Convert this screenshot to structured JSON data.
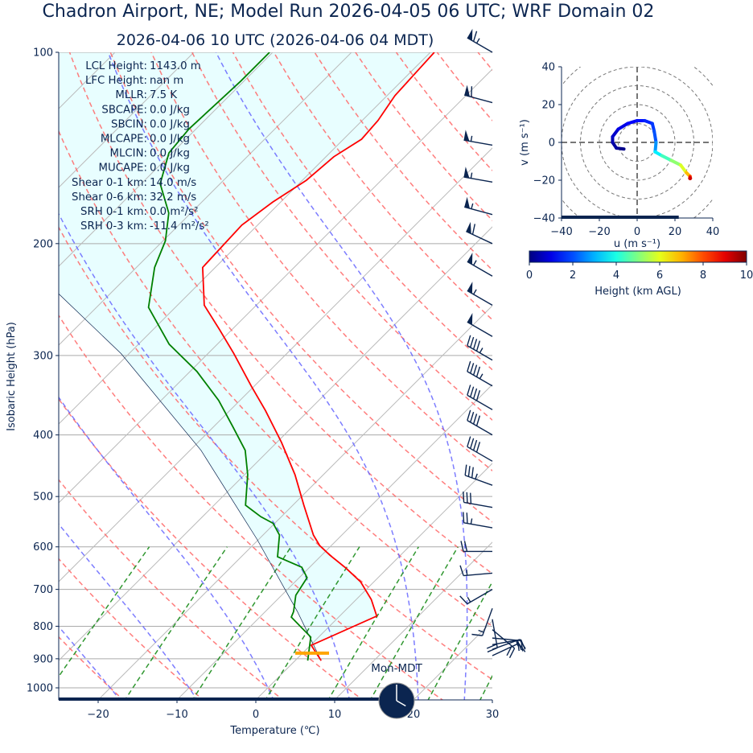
{
  "header": {
    "title": "Chadron Airport, NE; Model Run 2026-04-05 06 UTC; WRF Domain 02",
    "subtitle": "2026-04-06 10 UTC  (2026-04-06 04 MDT)"
  },
  "stats": [
    {
      "label": "LCL Height:",
      "value": "1143.0 m"
    },
    {
      "label": "LFC Height:",
      "value": "nan m"
    },
    {
      "label": "MLLR:",
      "value": "7.5 K"
    },
    {
      "label": "SBCAPE:",
      "value": "0.0 J/kg"
    },
    {
      "label": "SBCIN:",
      "value": "0.0 J/kg"
    },
    {
      "label": "MLCAPE:",
      "value": "0.0 J/kg"
    },
    {
      "label": "MLCIN:",
      "value": "0.0 J/kg"
    },
    {
      "label": "MUCAPE:",
      "value": "0.0 J/kg"
    },
    {
      "label": "Shear 0-1 km:",
      "value": "14.0 m/s"
    },
    {
      "label": "Shear 0-6 km:",
      "value": "32.2 m/s"
    },
    {
      "label": "SRH 0-1 km:",
      "value": "0.0 m²/s²"
    },
    {
      "label": "SRH 0-3 km:",
      "value": "-11.4 m²/s²"
    }
  ],
  "clock": {
    "label": "Mon-MDT",
    "hour": 4,
    "minute": 0,
    "color": "#0b2550"
  },
  "chart_data": [
    {
      "type": "line",
      "kind": "skew-t log-p",
      "xlabel": "Temperature (℃)",
      "ylabel": "Isobaric Height (hPa)",
      "xlim": [
        -25,
        30
      ],
      "ylim": [
        1044,
        100
      ],
      "y_scale": "log",
      "xticks": [
        -20,
        -10,
        0,
        10,
        20,
        30
      ],
      "xtick_labels": [
        "−20",
        "−10",
        "0",
        "10",
        "20",
        "30"
      ],
      "yticks": [
        100,
        200,
        300,
        400,
        500,
        600,
        700,
        800,
        900,
        1000
      ],
      "ytick_labels": [
        "100",
        "200",
        "300",
        "400",
        "500",
        "600",
        "700",
        "800",
        "900",
        "1000"
      ],
      "grid": true,
      "colors": {
        "temperature": "#ff0000",
        "dewpoint": "#008000",
        "parcel": "#0b2550",
        "dry_adiabats": "#ff6666",
        "moist_adiabats": "#6666ff",
        "mixing_ratio": "#1a8c1a",
        "cin_fill": "#e8feff",
        "lcl": "#ffa500",
        "barbs": "#0b2550"
      },
      "dry_adiabat_theta_c": [
        -30,
        -20,
        -10,
        0,
        10,
        20,
        30,
        40,
        50,
        60,
        70,
        80,
        90,
        100,
        110,
        120,
        130,
        140,
        150,
        160,
        170,
        180,
        190,
        200
      ],
      "moist_adiabat_t0_c": [
        -20,
        -10,
        0,
        10,
        19,
        25
      ],
      "mixing_ratio_gkg": [
        0.4,
        1,
        2,
        4,
        7,
        10,
        16,
        24,
        32
      ],
      "lcl_pressure_hpa": 882,
      "series": [
        {
          "id": "temperature",
          "points": [
            [
              906,
              3.3
            ],
            [
              857,
              0.1
            ],
            [
              771,
              4.7
            ],
            [
              726,
              1.9
            ],
            [
              681,
              -1.7
            ],
            [
              648,
              -5.3
            ],
            [
              618,
              -9.0
            ],
            [
              597,
              -11.5
            ],
            [
              575,
              -13.6
            ],
            [
              516,
              -18.6
            ],
            [
              462,
              -23.6
            ],
            [
              411,
              -29.4
            ],
            [
              366,
              -35.5
            ],
            [
              335,
              -40.4
            ],
            [
              298,
              -46.7
            ],
            [
              273,
              -51.6
            ],
            [
              250,
              -56.6
            ],
            [
              218,
              -61.6
            ],
            [
              187,
              -62.0
            ],
            [
              172,
              -61.0
            ],
            [
              159,
              -59.5
            ],
            [
              146,
              -59.0
            ],
            [
              137,
              -57.7
            ],
            [
              128,
              -58.0
            ],
            [
              117,
              -59.0
            ],
            [
              100,
              -59.5
            ]
          ]
        },
        {
          "id": "dewpoint",
          "points": [
            [
              906,
              1.6
            ],
            [
              832,
              -1.0
            ],
            [
              774,
              -6.0
            ],
            [
              759,
              -6.4
            ],
            [
              715,
              -8.2
            ],
            [
              671,
              -9.0
            ],
            [
              646,
              -11.0
            ],
            [
              622,
              -15.4
            ],
            [
              575,
              -17.9
            ],
            [
              551,
              -20.2
            ],
            [
              538,
              -22.6
            ],
            [
              516,
              -26.0
            ],
            [
              462,
              -29.6
            ],
            [
              423,
              -33.0
            ],
            [
              388,
              -37.6
            ],
            [
              353,
              -42.7
            ],
            [
              318,
              -49.1
            ],
            [
              288,
              -56.1
            ],
            [
              252,
              -63.4
            ],
            [
              218,
              -67.7
            ],
            [
              198,
              -69.7
            ],
            [
              179,
              -72.8
            ],
            [
              161,
              -77.6
            ],
            [
              144,
              -80.4
            ],
            [
              132,
              -80.9
            ],
            [
              111,
              -80.4
            ],
            [
              100,
              -80.4
            ]
          ]
        },
        {
          "id": "parcel",
          "points": [
            [
              906,
              3.3
            ],
            [
              759,
              -5.9
            ],
            [
              584,
              -20.2
            ],
            [
              423,
              -38.6
            ],
            [
              298,
              -61.0
            ],
            [
              233,
              -78.6
            ],
            [
              150,
              -110
            ],
            [
              100,
              -140
            ]
          ]
        }
      ],
      "wind_barbs": [
        {
          "p": 100,
          "dir": 300,
          "kt": 65
        },
        {
          "p": 120,
          "dir": 285,
          "kt": 60
        },
        {
          "p": 140,
          "dir": 280,
          "kt": 55
        },
        {
          "p": 160,
          "dir": 280,
          "kt": 55
        },
        {
          "p": 180,
          "dir": 285,
          "kt": 55
        },
        {
          "p": 200,
          "dir": 295,
          "kt": 60
        },
        {
          "p": 225,
          "dir": 300,
          "kt": 55
        },
        {
          "p": 250,
          "dir": 300,
          "kt": 55
        },
        {
          "p": 280,
          "dir": 300,
          "kt": 50
        },
        {
          "p": 305,
          "dir": 300,
          "kt": 45
        },
        {
          "p": 335,
          "dir": 300,
          "kt": 45
        },
        {
          "p": 365,
          "dir": 300,
          "kt": 40
        },
        {
          "p": 400,
          "dir": 300,
          "kt": 40
        },
        {
          "p": 440,
          "dir": 300,
          "kt": 40
        },
        {
          "p": 480,
          "dir": 290,
          "kt": 35
        },
        {
          "p": 520,
          "dir": 280,
          "kt": 30
        },
        {
          "p": 560,
          "dir": 280,
          "kt": 25
        },
        {
          "p": 610,
          "dir": 270,
          "kt": 20
        },
        {
          "p": 660,
          "dir": 265,
          "kt": 15
        },
        {
          "p": 700,
          "dir": 240,
          "kt": 15
        },
        {
          "p": 750,
          "dir": 200,
          "kt": 15
        },
        {
          "p": 780,
          "dir": 170,
          "kt": 20
        },
        {
          "p": 810,
          "dir": 130,
          "kt": 20
        },
        {
          "p": 835,
          "dir": 95,
          "kt": 20
        },
        {
          "p": 855,
          "dir": 80,
          "kt": 20
        },
        {
          "p": 870,
          "dir": 70,
          "kt": 15
        },
        {
          "p": 890,
          "dir": 65,
          "kt": 10
        }
      ],
      "time_progress": 0.74
    },
    {
      "type": "line",
      "kind": "hodograph",
      "xlabel": "u (m s⁻¹)",
      "ylabel": "v (m s⁻¹)",
      "xlim": [
        -40,
        40
      ],
      "ylim": [
        -40,
        40
      ],
      "xticks": [
        -40,
        -20,
        0,
        20,
        40
      ],
      "xtick_labels": [
        "−40",
        "−20",
        "0",
        "20",
        "40"
      ],
      "yticks": [
        40,
        20,
        0,
        -20,
        -40
      ],
      "ytick_labels": [
        "40",
        "20",
        "0",
        "−20",
        "−40"
      ],
      "rings": [
        10,
        20,
        30,
        40,
        50
      ],
      "points": [
        {
          "u": -7,
          "v": -3.5,
          "h": 0
        },
        {
          "u": -11,
          "v": -3,
          "h": 0.2
        },
        {
          "u": -13,
          "v": 0,
          "h": 0.4
        },
        {
          "u": -13,
          "v": 3,
          "h": 0.6
        },
        {
          "u": -10,
          "v": 7,
          "h": 0.9
        },
        {
          "u": -5,
          "v": 10,
          "h": 1.1
        },
        {
          "u": 0,
          "v": 11.5,
          "h": 1.3
        },
        {
          "u": 4,
          "v": 11.5,
          "h": 1.5
        },
        {
          "u": 8,
          "v": 10,
          "h": 1.7
        },
        {
          "u": 9,
          "v": 6,
          "h": 1.9
        },
        {
          "u": 10,
          "v": 0,
          "h": 2.2
        },
        {
          "u": 9.5,
          "v": -5,
          "h": 3.2
        },
        {
          "u": 13,
          "v": -7,
          "h": 4.0
        },
        {
          "u": 18,
          "v": -9.5,
          "h": 4.8
        },
        {
          "u": 23,
          "v": -12,
          "h": 5.5
        },
        {
          "u": 26,
          "v": -16,
          "h": 6.3
        },
        {
          "u": 28,
          "v": -18,
          "h": 7.5
        },
        {
          "u": 28,
          "v": -19,
          "h": 9.2
        }
      ],
      "time_progress": 0.775
    },
    {
      "type": "colorbar",
      "colormap": "jet",
      "label": "Height (km AGL)",
      "range": [
        0,
        10
      ],
      "ticks": [
        0,
        2,
        4,
        6,
        8,
        10
      ],
      "tick_labels": [
        "0",
        "2",
        "4",
        "6",
        "8",
        "10"
      ]
    }
  ]
}
